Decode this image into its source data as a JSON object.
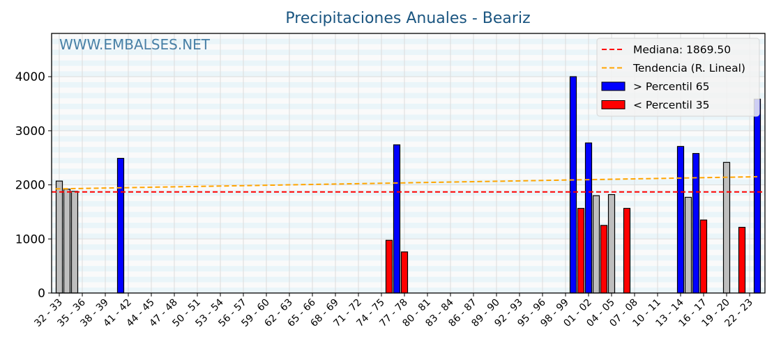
{
  "chart_data": {
    "type": "bar",
    "title": "Precipitaciones Anuales - Beariz",
    "watermark": "WWW.EMBALSES.NET",
    "xlabel": "",
    "ylabel": "",
    "ylim": [
      0,
      4800
    ],
    "xlim": [
      -1,
      92
    ],
    "grid": true,
    "legend_position": "upper right",
    "yticks": [
      0,
      1000,
      2000,
      3000,
      4000
    ],
    "xtick_labels": [
      "32 - 33",
      "35 - 36",
      "38 - 39",
      "41 - 42",
      "44 - 45",
      "47 - 48",
      "50 - 51",
      "53 - 54",
      "56 - 57",
      "59 - 60",
      "62 - 63",
      "65 - 66",
      "68 - 69",
      "71 - 72",
      "74 - 75",
      "77 - 78",
      "80 - 81",
      "83 - 84",
      "86 - 87",
      "89 - 90",
      "92 - 93",
      "95 - 96",
      "98 - 99",
      "01 - 02",
      "04 - 05",
      "07 - 08",
      "10 - 11",
      "13 - 14",
      "16 - 17",
      "19 - 20",
      "22 - 23"
    ],
    "xtick_step": 3,
    "bars": [
      {
        "index": 0,
        "label": "32 - 33",
        "value": 2070,
        "class": "normal"
      },
      {
        "index": 1,
        "label": "33 - 34",
        "value": 1920,
        "class": "normal"
      },
      {
        "index": 2,
        "label": "34 - 35",
        "value": 1880,
        "class": "normal"
      },
      {
        "index": 8,
        "label": "40 - 41",
        "value": 2490,
        "class": "high"
      },
      {
        "index": 43,
        "label": "75 - 76",
        "value": 975,
        "class": "low"
      },
      {
        "index": 44,
        "label": "76 - 77",
        "value": 2740,
        "class": "high"
      },
      {
        "index": 45,
        "label": "77 - 78",
        "value": 760,
        "class": "low"
      },
      {
        "index": 67,
        "label": "99 - 00",
        "value": 4000,
        "class": "high"
      },
      {
        "index": 68,
        "label": "00 - 01",
        "value": 1565,
        "class": "low"
      },
      {
        "index": 69,
        "label": "01 - 02",
        "value": 2775,
        "class": "high"
      },
      {
        "index": 70,
        "label": "02 - 03",
        "value": 1800,
        "class": "normal"
      },
      {
        "index": 71,
        "label": "03 - 04",
        "value": 1250,
        "class": "low"
      },
      {
        "index": 72,
        "label": "04 - 05",
        "value": 1820,
        "class": "normal"
      },
      {
        "index": 74,
        "label": "06 - 07",
        "value": 1565,
        "class": "low"
      },
      {
        "index": 81,
        "label": "13 - 14",
        "value": 2710,
        "class": "high"
      },
      {
        "index": 82,
        "label": "14 - 15",
        "value": 1770,
        "class": "normal"
      },
      {
        "index": 83,
        "label": "15 - 16",
        "value": 2580,
        "class": "high"
      },
      {
        "index": 84,
        "label": "16 - 17",
        "value": 1350,
        "class": "low"
      },
      {
        "index": 87,
        "label": "19 - 20",
        "value": 2415,
        "class": "normal"
      },
      {
        "index": 89,
        "label": "21 - 22",
        "value": 1215,
        "class": "low"
      },
      {
        "index": 91,
        "label": "23 - 24",
        "value": 3585,
        "class": "high"
      }
    ],
    "series": [
      {
        "name": "Mediana: 1869.50",
        "type": "hline",
        "value": 1869.5,
        "color": "#ff0000",
        "style": "dashed"
      },
      {
        "name": "Tendencia (R. Lineal)",
        "type": "line",
        "x": [
          0,
          91
        ],
        "values": [
          1925,
          2150
        ],
        "color": "#ffa500",
        "style": "dashed"
      },
      {
        "name": " > Percentil 65",
        "type": "bar",
        "color": "#0000ff"
      },
      {
        "name": " < Percentil 35",
        "type": "bar",
        "color": "#ff0000"
      }
    ],
    "colors": {
      "high": "#0000ff",
      "low": "#ff0000",
      "normal": "#bebebe",
      "median": "#ff0000",
      "trend": "#ffa500",
      "title": "#1a5580",
      "stripe": "#eaf5f9"
    },
    "legend": [
      {
        "label": "Mediana: 1869.50",
        "kind": "dash",
        "color": "#ff0000"
      },
      {
        "label": "Tendencia (R. Lineal)",
        "kind": "dash",
        "color": "#ffa500"
      },
      {
        "label": " > Percentil 65",
        "kind": "patch",
        "color": "#0000ff"
      },
      {
        "label": " < Percentil 35",
        "kind": "patch",
        "color": "#ff0000"
      }
    ]
  }
}
